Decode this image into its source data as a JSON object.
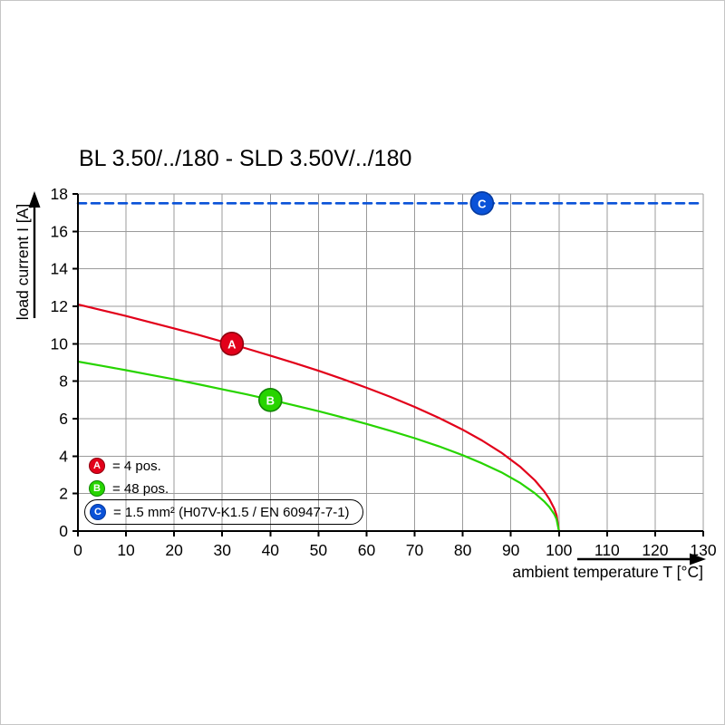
{
  "chart_data": {
    "type": "line",
    "title": "BL 3.50/../180 - SLD 3.50V/../180",
    "xlabel": "ambient temperature T [°C]",
    "ylabel": "load current I [A]",
    "xlim": [
      0,
      130
    ],
    "ylim": [
      0,
      18
    ],
    "xticks": [
      0,
      10,
      20,
      30,
      40,
      50,
      60,
      70,
      80,
      90,
      100,
      110,
      120,
      130
    ],
    "yticks": [
      0,
      2,
      4,
      6,
      8,
      10,
      12,
      14,
      16,
      18
    ],
    "grid": true,
    "grid_color": "#9b9b9b",
    "axis_color": "#000000",
    "legend_position": "lower-left inside plot",
    "series": [
      {
        "id": "A",
        "legend": "= 4 pos.",
        "color": "#e2001a",
        "edge": "#8f000f",
        "dash": false,
        "marker": {
          "x": 32,
          "y": 10.0,
          "label": "A"
        },
        "points": [
          [
            0,
            12.1
          ],
          [
            5,
            11.79
          ],
          [
            10,
            11.48
          ],
          [
            15,
            11.15
          ],
          [
            20,
            10.82
          ],
          [
            25,
            10.48
          ],
          [
            30,
            10.12
          ],
          [
            35,
            9.75
          ],
          [
            40,
            9.37
          ],
          [
            45,
            8.97
          ],
          [
            50,
            8.56
          ],
          [
            55,
            8.12
          ],
          [
            60,
            7.65
          ],
          [
            65,
            7.16
          ],
          [
            70,
            6.63
          ],
          [
            75,
            6.05
          ],
          [
            80,
            5.41
          ],
          [
            84,
            4.84
          ],
          [
            88,
            4.19
          ],
          [
            92,
            3.42
          ],
          [
            95,
            2.71
          ],
          [
            97,
            2.1
          ],
          [
            98,
            1.71
          ],
          [
            99,
            1.21
          ],
          [
            99.5,
            0.86
          ],
          [
            100,
            0
          ]
        ]
      },
      {
        "id": "B",
        "legend": "= 48 pos.",
        "color": "#27d400",
        "edge": "#0f8500",
        "dash": false,
        "marker": {
          "x": 40,
          "y": 7.0,
          "label": "B"
        },
        "points": [
          [
            0,
            9.05
          ],
          [
            5,
            8.82
          ],
          [
            10,
            8.59
          ],
          [
            15,
            8.34
          ],
          [
            20,
            8.1
          ],
          [
            25,
            7.84
          ],
          [
            30,
            7.57
          ],
          [
            35,
            7.3
          ],
          [
            40,
            7.01
          ],
          [
            45,
            6.71
          ],
          [
            50,
            6.4
          ],
          [
            55,
            6.07
          ],
          [
            60,
            5.72
          ],
          [
            65,
            5.35
          ],
          [
            70,
            4.96
          ],
          [
            75,
            4.53
          ],
          [
            80,
            4.05
          ],
          [
            84,
            3.62
          ],
          [
            88,
            3.14
          ],
          [
            92,
            2.56
          ],
          [
            95,
            2.02
          ],
          [
            97,
            1.57
          ],
          [
            98,
            1.28
          ],
          [
            99,
            0.91
          ],
          [
            99.5,
            0.64
          ],
          [
            100,
            0
          ]
        ]
      },
      {
        "id": "C",
        "legend": "= 1.5 mm² (H07V-K1.5 / EN 60947-7-1)",
        "color": "#0a52d8",
        "edge": "#063a9e",
        "dash": true,
        "marker": {
          "x": 84,
          "y": 17.5,
          "label": "C"
        },
        "points": [
          [
            0,
            17.5
          ],
          [
            130,
            17.5
          ]
        ]
      }
    ]
  }
}
